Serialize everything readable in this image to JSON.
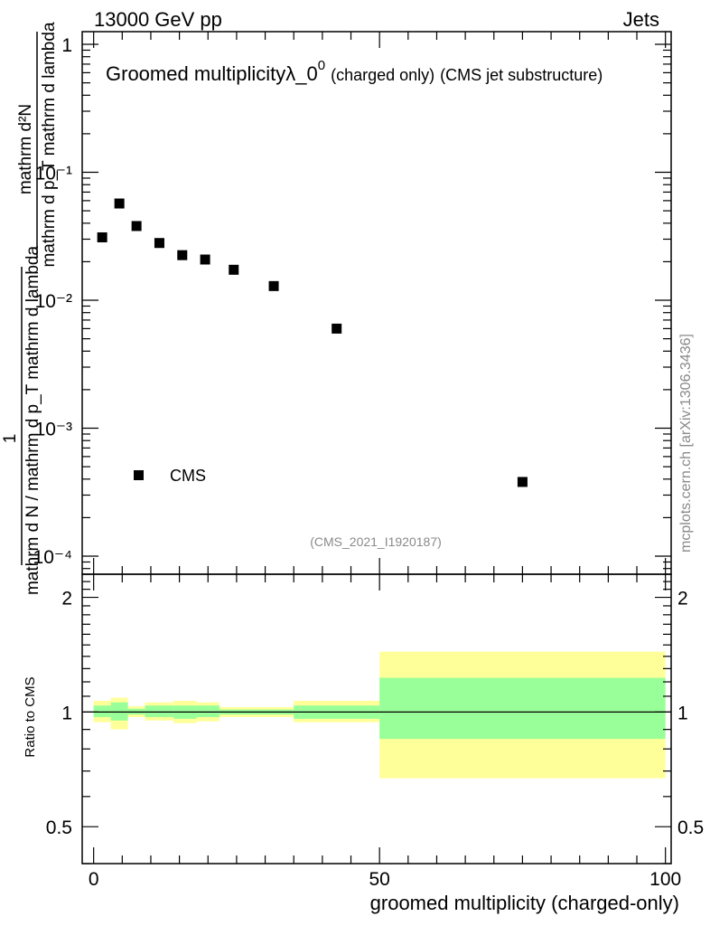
{
  "header": {
    "energy_label": "13000 GeV pp",
    "process_label": "Jets"
  },
  "side_label": "mcplots.cern.ch [arXiv:1306.3436]",
  "chart_data": [
    {
      "type": "scatter",
      "title": {
        "main": "Groomed multiplicity",
        "lambda": "λ_0",
        "sup": "0",
        "note": "(charged only)",
        "suffix": "(CMS jet substructure)"
      },
      "ylabel": {
        "numerator": "1",
        "denominator": "mathrm d N / mathrm d p_T mathrm d lambda",
        "upper_numerator": "mathrm d²N",
        "upper_denominator": "mathrm d p_T mathrm d lambda"
      },
      "yscale": "log",
      "ylim": [
        0.0001,
        1
      ],
      "xlim": [
        -2,
        101
      ],
      "y_tick_labels": [
        "1",
        "10⁻¹",
        "10⁻²",
        "10⁻³",
        "10⁻⁴"
      ],
      "legend": {
        "label": "CMS",
        "position": "bottom-left"
      },
      "analysis_label": "(CMS_2021_I1920187)",
      "series": [
        {
          "name": "CMS",
          "x": [
            1.5,
            4.5,
            7.5,
            11.5,
            15.5,
            19.5,
            24.5,
            31.5,
            42.5,
            75
          ],
          "y": [
            0.031,
            0.057,
            0.038,
            0.028,
            0.0225,
            0.0208,
            0.0173,
            0.0129,
            0.006,
            0.00038
          ]
        }
      ]
    },
    {
      "type": "area",
      "ylabel": "Ratio to CMS",
      "xlabel": "groomed multiplicity (charged-only)",
      "ylim": [
        0.4,
        2.3
      ],
      "xlim": [
        -2,
        101
      ],
      "x_ticks": [
        0,
        50,
        100
      ],
      "x_tick_labels": [
        "0",
        "50",
        "100"
      ],
      "y_ticks": [
        0.5,
        1,
        2
      ],
      "y_tick_labels": [
        "0.5",
        "1",
        "2"
      ],
      "bins": [
        {
          "lo": 0,
          "hi": 3,
          "green": [
            0.97,
            1.04
          ],
          "yellow": [
            0.94,
            1.07
          ]
        },
        {
          "lo": 3,
          "hi": 6,
          "green": [
            0.95,
            1.06
          ],
          "yellow": [
            0.9,
            1.09
          ]
        },
        {
          "lo": 6,
          "hi": 9,
          "green": [
            0.985,
            1.02
          ],
          "yellow": [
            0.97,
            1.035
          ]
        },
        {
          "lo": 9,
          "hi": 14,
          "green": [
            0.97,
            1.04
          ],
          "yellow": [
            0.95,
            1.06
          ]
        },
        {
          "lo": 14,
          "hi": 18,
          "green": [
            0.96,
            1.04
          ],
          "yellow": [
            0.935,
            1.07
          ]
        },
        {
          "lo": 18,
          "hi": 22,
          "green": [
            0.97,
            1.04
          ],
          "yellow": [
            0.945,
            1.06
          ]
        },
        {
          "lo": 22,
          "hi": 35,
          "green": [
            0.985,
            1.015
          ],
          "yellow": [
            0.97,
            1.03
          ]
        },
        {
          "lo": 35,
          "hi": 50,
          "green": [
            0.96,
            1.04
          ],
          "yellow": [
            0.94,
            1.07
          ]
        },
        {
          "lo": 50,
          "hi": 100,
          "green": [
            0.85,
            1.23
          ],
          "yellow": [
            0.67,
            1.44
          ]
        }
      ],
      "colors": {
        "green": "#99ff99",
        "yellow": "#ffff99"
      }
    }
  ]
}
